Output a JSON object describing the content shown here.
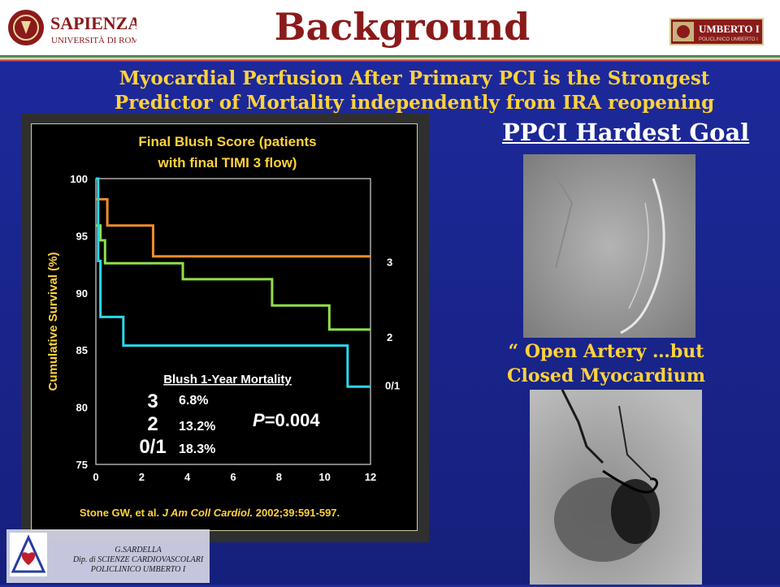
{
  "header": {
    "title": "Background",
    "university_name": "SAPIENZA",
    "university_sub": "UNIVERSITÀ DI ROMA",
    "right_logo_text": "UMBERTO I",
    "right_logo_sub": "POLICLINICO UMBERTO I"
  },
  "subtitle": {
    "line1": "Myocardial Perfusion After Primary PCI is the Strongest",
    "line2": "Predictor of Mortality independently from IRA reopening"
  },
  "right_panel": {
    "goal_heading": "PPCI Hardest Goal",
    "quote_line1": "“ Open Artery …but",
    "quote_line2": "Closed Myocardium ”!!"
  },
  "footer": {
    "name": "G.SARDELLA",
    "dept": "Dip. di SCIENZE CARDIOVASCOLARI",
    "hospital": "POLICLINICO UMBERTO I"
  },
  "colors": {
    "title_red": "#8b1a1a",
    "yellow_text": "#ffd23a",
    "background_blue": "#1e2a9e",
    "series_3": "#f08c2c",
    "series_2": "#8fe04a",
    "series_01": "#2ad8e8"
  },
  "chart_data": {
    "type": "line",
    "step": true,
    "title": "Final Blush Score (patients with final TIMI 3 flow)",
    "title_line1": "Final Blush Score (patients",
    "title_line2": "with final TIMI 3 flow)",
    "xlabel": "",
    "ylabel": "Cumulative Survival (%)",
    "xlim": [
      0,
      12
    ],
    "ylim": [
      75,
      100
    ],
    "xticks": [
      "0",
      "2",
      "4",
      "6",
      "8",
      "10",
      "12"
    ],
    "yticks": [
      "100",
      "95",
      "90",
      "85",
      "80",
      "75"
    ],
    "series": [
      {
        "name": "3",
        "color": "#f08c2c",
        "x": [
          0,
          0.5,
          0.5,
          2.5,
          2.5,
          12
        ],
        "y": [
          98.2,
          98.2,
          95.9,
          95.9,
          93.2,
          93.2
        ]
      },
      {
        "name": "2",
        "color": "#8fe04a",
        "x": [
          0,
          0.2,
          0.2,
          0.4,
          0.4,
          3.8,
          3.8,
          7.7,
          7.7,
          10.2,
          10.2,
          12
        ],
        "y": [
          95.9,
          95.9,
          94.6,
          94.6,
          92.6,
          92.6,
          91.2,
          91.2,
          88.9,
          88.9,
          86.8,
          86.8
        ]
      },
      {
        "name": "0/1",
        "color": "#2ad8e8",
        "x": [
          0,
          0.1,
          0.1,
          0.2,
          0.2,
          1.2,
          1.2,
          11.0,
          11.0,
          12
        ],
        "y": [
          100,
          100,
          92.8,
          92.8,
          87.9,
          87.9,
          85.4,
          85.4,
          81.8,
          81.8
        ]
      }
    ],
    "mortality_table": {
      "heading": "Blush 1-Year Mortality",
      "rows": [
        {
          "grade": "3",
          "value": "6.8%"
        },
        {
          "grade": "2",
          "value": "13.2%"
        },
        {
          "grade": "0/1",
          "value": "18.3%"
        }
      ]
    },
    "p_value_label": "P",
    "p_value": "=0.004",
    "citation_plain": "Stone GW, et al. ",
    "citation_italic": "J Am Coll Cardiol.",
    "citation_tail": " 2002;39:591-597."
  }
}
